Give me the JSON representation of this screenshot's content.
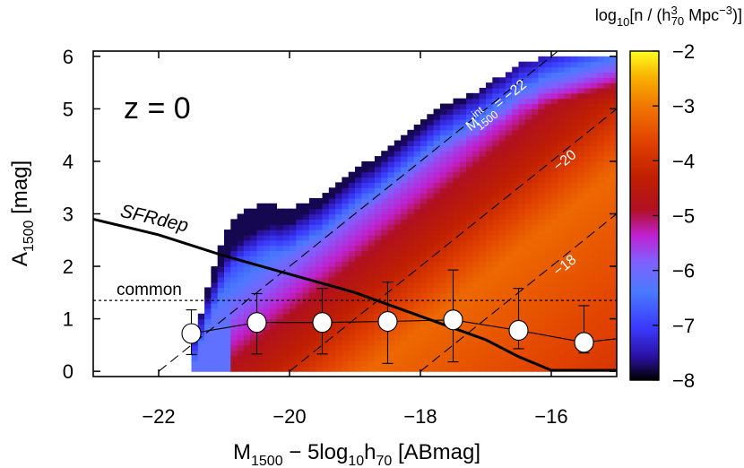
{
  "chart_data": {
    "type": "heatmap",
    "panel_label": "z = 0",
    "xlabel": {
      "main": "M",
      "sub1": "1500",
      "mid": " − 5log",
      "sub2": "10",
      "main2": "h",
      "sub3": "70",
      "tail": " [ABmag]"
    },
    "ylabel": {
      "main": "A",
      "sub": "1500",
      "tail": " [mag]"
    },
    "colorbar_label": {
      "pre": "log",
      "sub1": "10",
      "mid": "[n / (h",
      "sup": "3",
      "sub2": "70",
      "tail": " Mpc",
      "sup2": "−3",
      "end": ")]"
    },
    "xlim": [
      -23,
      -15
    ],
    "ylim": [
      -0.1,
      6.1
    ],
    "xticks": [
      -22,
      -20,
      -18,
      -16
    ],
    "xtick_labels": [
      "−22",
      "−20",
      "−18",
      "−16"
    ],
    "yticks": [
      0,
      1,
      2,
      3,
      4,
      5,
      6
    ],
    "ytick_labels": [
      "0",
      "1",
      "2",
      "3",
      "4",
      "5",
      "6"
    ],
    "colorbar_range": [
      -8,
      -2
    ],
    "colorbar_ticks": [
      -8,
      -7,
      -6,
      -5,
      -4,
      -3,
      -2
    ],
    "colorbar_tick_labels": [
      "−8",
      "−7",
      "−6",
      "−5",
      "−4",
      "−3",
      "−2"
    ],
    "heatmap_grid": {
      "x_start": -21.6,
      "dx": 0.1,
      "y_start": 0.0,
      "dy": 0.1
    },
    "heatmap_envelope": [
      {
        "x": -21.5,
        "y_top": 0.3
      },
      {
        "x": -21.3,
        "y_top": 1.4
      },
      {
        "x": -21.1,
        "y_top": 2.2
      },
      {
        "x": -20.9,
        "y_top": 2.8
      },
      {
        "x": -20.6,
        "y_top": 3.1
      },
      {
        "x": -20.3,
        "y_top": 3.2
      },
      {
        "x": -20.0,
        "y_top": 3.1
      },
      {
        "x": -19.6,
        "y_top": 3.3
      },
      {
        "x": -19.2,
        "y_top": 3.6
      },
      {
        "x": -18.8,
        "y_top": 4.0
      },
      {
        "x": -18.4,
        "y_top": 4.3
      },
      {
        "x": -18.0,
        "y_top": 4.7
      },
      {
        "x": -17.6,
        "y_top": 5.1
      },
      {
        "x": -17.2,
        "y_top": 5.3
      },
      {
        "x": -16.8,
        "y_top": 5.6
      },
      {
        "x": -16.4,
        "y_top": 5.9
      },
      {
        "x": -16.0,
        "y_top": 6.0
      },
      {
        "x": -15.6,
        "y_top": 6.0
      },
      {
        "x": -15.2,
        "y_top": 6.0
      }
    ],
    "iso_magnitude_lines": [
      {
        "m_int": -22,
        "label": "M",
        "label_sup": "int",
        "label_sub": "1500",
        "label_val": " = −22"
      },
      {
        "m_int": -20,
        "label_val": "−20"
      },
      {
        "m_int": -18,
        "label_val": "−18"
      }
    ],
    "common_line": {
      "y": 1.35,
      "label": "common"
    },
    "sfrdep_curve": {
      "label": "SFRdep",
      "x": [
        -23.0,
        -22.0,
        -21.0,
        -20.0,
        -19.0,
        -18.0,
        -17.0,
        -16.5,
        -16.0,
        -15.0
      ],
      "y": [
        2.9,
        2.6,
        2.2,
        1.85,
        1.5,
        1.05,
        0.6,
        0.28,
        0.02,
        0.02
      ]
    },
    "median_points": {
      "x": [
        -21.5,
        -20.5,
        -19.5,
        -18.5,
        -17.5,
        -16.5,
        -15.5
      ],
      "y": [
        0.72,
        0.93,
        0.93,
        0.95,
        0.98,
        0.78,
        0.55
      ],
      "err_low": [
        0.4,
        0.6,
        0.6,
        0.8,
        0.8,
        0.35,
        0.2
      ],
      "err_high": [
        0.45,
        0.55,
        0.65,
        0.75,
        0.95,
        0.8,
        0.7
      ]
    }
  }
}
